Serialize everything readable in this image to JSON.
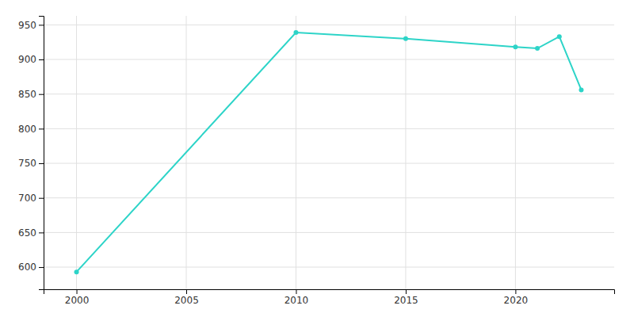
{
  "chart_data": {
    "type": "line",
    "x": [
      2000,
      2010,
      2015,
      2020,
      2021,
      2022,
      2023
    ],
    "values": [
      593,
      939,
      930,
      918,
      916,
      933,
      856
    ],
    "color": "#2dd4c8",
    "marker": "circle",
    "xlim": [
      1998.5,
      2024.5
    ],
    "xticks": [
      2000,
      2005,
      2010,
      2015,
      2020
    ],
    "ylim": [
      568,
      963
    ],
    "yticks": [
      600,
      650,
      700,
      750,
      800,
      850,
      900,
      950
    ],
    "grid": true
  }
}
